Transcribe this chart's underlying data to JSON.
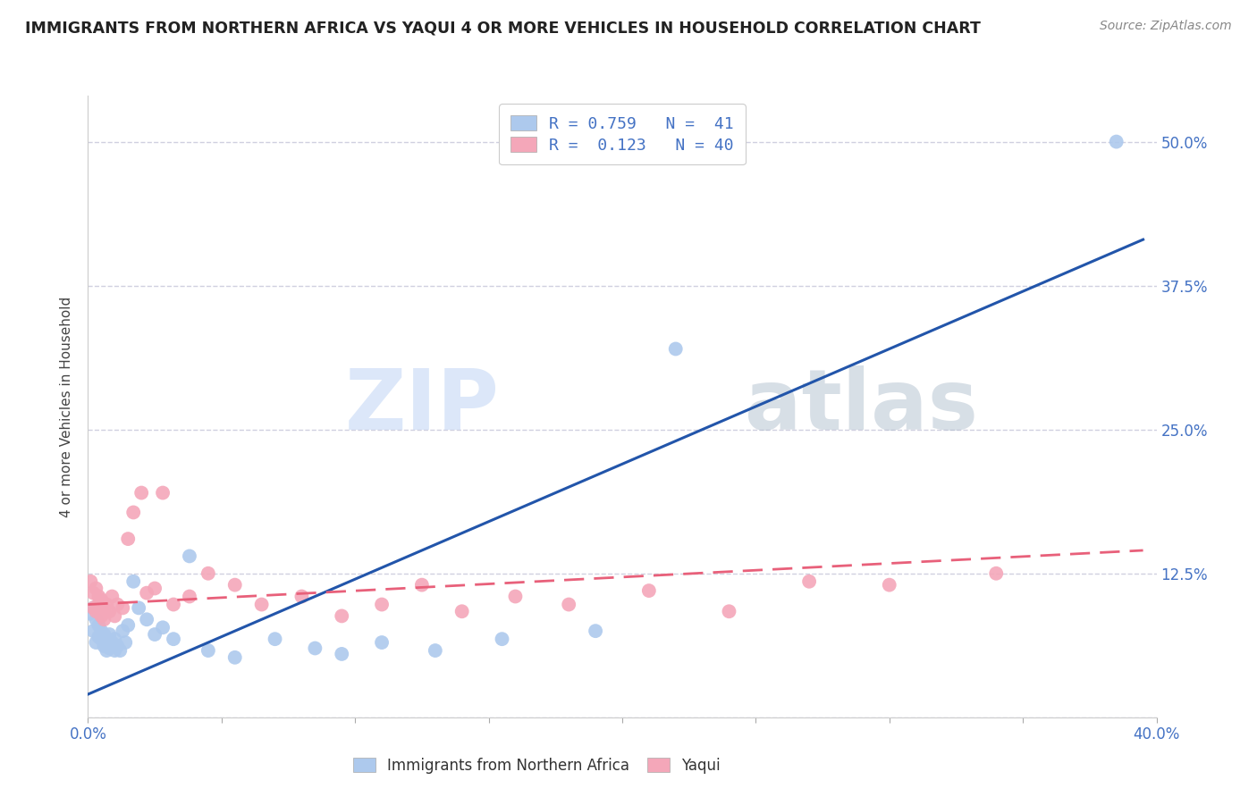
{
  "title": "IMMIGRANTS FROM NORTHERN AFRICA VS YAQUI 4 OR MORE VEHICLES IN HOUSEHOLD CORRELATION CHART",
  "source": "Source: ZipAtlas.com",
  "xlabel_blue": "Immigrants from Northern Africa",
  "xlabel_pink": "Yaqui",
  "ylabel": "4 or more Vehicles in Household",
  "watermark_zip": "ZIP",
  "watermark_atlas": "atlas",
  "xmin": 0.0,
  "xmax": 0.4,
  "ymin": 0.0,
  "ymax": 0.54,
  "yticks": [
    0.0,
    0.125,
    0.25,
    0.375,
    0.5
  ],
  "ytick_labels": [
    "",
    "12.5%",
    "25.0%",
    "37.5%",
    "50.0%"
  ],
  "R_blue": 0.759,
  "N_blue": 41,
  "R_pink": 0.123,
  "N_pink": 40,
  "blue_color": "#adc9ed",
  "pink_color": "#f4a7b9",
  "blue_line_color": "#2255aa",
  "pink_line_color": "#e8607a",
  "grid_color": "#d0d0e0",
  "background_color": "#ffffff",
  "blue_scatter_x": [
    0.001,
    0.002,
    0.002,
    0.003,
    0.003,
    0.004,
    0.004,
    0.005,
    0.005,
    0.006,
    0.006,
    0.007,
    0.007,
    0.008,
    0.008,
    0.009,
    0.01,
    0.01,
    0.011,
    0.012,
    0.013,
    0.014,
    0.015,
    0.017,
    0.019,
    0.022,
    0.025,
    0.028,
    0.032,
    0.038,
    0.045,
    0.055,
    0.07,
    0.085,
    0.095,
    0.11,
    0.13,
    0.155,
    0.19,
    0.22,
    0.385
  ],
  "blue_scatter_y": [
    0.09,
    0.095,
    0.075,
    0.085,
    0.065,
    0.08,
    0.07,
    0.075,
    0.068,
    0.072,
    0.062,
    0.068,
    0.058,
    0.072,
    0.06,
    0.065,
    0.058,
    0.068,
    0.062,
    0.058,
    0.075,
    0.065,
    0.08,
    0.118,
    0.095,
    0.085,
    0.072,
    0.078,
    0.068,
    0.14,
    0.058,
    0.052,
    0.068,
    0.06,
    0.055,
    0.065,
    0.058,
    0.068,
    0.075,
    0.32,
    0.5
  ],
  "pink_scatter_x": [
    0.001,
    0.002,
    0.002,
    0.003,
    0.003,
    0.004,
    0.004,
    0.005,
    0.005,
    0.006,
    0.006,
    0.007,
    0.008,
    0.009,
    0.01,
    0.011,
    0.013,
    0.015,
    0.017,
    0.02,
    0.022,
    0.025,
    0.028,
    0.032,
    0.038,
    0.045,
    0.055,
    0.065,
    0.08,
    0.095,
    0.11,
    0.125,
    0.14,
    0.16,
    0.18,
    0.21,
    0.24,
    0.27,
    0.3,
    0.34
  ],
  "pink_scatter_y": [
    0.118,
    0.108,
    0.095,
    0.112,
    0.092,
    0.105,
    0.098,
    0.102,
    0.088,
    0.095,
    0.085,
    0.098,
    0.092,
    0.105,
    0.088,
    0.098,
    0.095,
    0.155,
    0.178,
    0.195,
    0.108,
    0.112,
    0.195,
    0.098,
    0.105,
    0.125,
    0.115,
    0.098,
    0.105,
    0.088,
    0.098,
    0.115,
    0.092,
    0.105,
    0.098,
    0.11,
    0.092,
    0.118,
    0.115,
    0.125
  ],
  "blue_line_x0": 0.0,
  "blue_line_x1": 0.395,
  "blue_line_y0": 0.02,
  "blue_line_y1": 0.415,
  "pink_line_x0": 0.0,
  "pink_line_x1": 0.395,
  "pink_line_y0": 0.098,
  "pink_line_y1": 0.145
}
